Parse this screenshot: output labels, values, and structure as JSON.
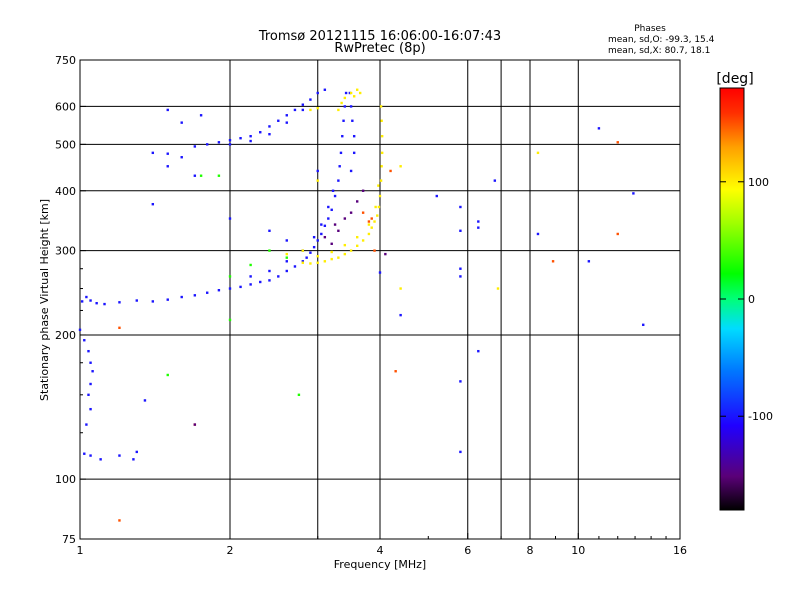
{
  "chart_data": {
    "type": "scatter",
    "title": "Tromsø 20121115 16:06:00-16:07:43",
    "subtitle": "RwPretec (8p)",
    "xlabel": "Frequency [MHz]",
    "ylabel": "Stationary phase Virtual Height [km]",
    "x_scale": "log2",
    "y_scale": "log",
    "xlim": [
      1,
      16
    ],
    "ylim": [
      75,
      750
    ],
    "x_ticks": [
      1,
      2,
      4,
      6,
      8,
      10,
      16
    ],
    "x_tick_labels": [
      "1",
      "2",
      "4",
      "6",
      "8",
      "10",
      "16"
    ],
    "x_grid": [
      1,
      2,
      3,
      4,
      6,
      7,
      8,
      10
    ],
    "y_ticks": [
      75,
      100,
      200,
      300,
      400,
      500,
      600,
      750
    ],
    "y_tick_labels": [
      "75",
      "100",
      "200",
      "300",
      "400",
      "500",
      "600",
      "750"
    ],
    "y_grid": [
      100,
      200,
      300,
      400,
      500,
      600
    ],
    "grid": true,
    "stats": {
      "header": "Phases",
      "line_o": "mean, sd,O: -99.3, 15.4",
      "line_x": "mean, sd,X:  80.7, 18.1"
    },
    "colorbar": {
      "label": "[deg]",
      "range": [
        -180,
        180
      ],
      "ticks": [
        100,
        0,
        -100
      ],
      "tick_labels": [
        "100",
        "0",
        "-100"
      ],
      "colors": [
        "#000000",
        "#5a0078",
        "#2000ff",
        "#0078ff",
        "#00dcff",
        "#00ff78",
        "#00ff00",
        "#a0ff00",
        "#ffff00",
        "#ffa000",
        "#ff3000",
        "#ff0000"
      ]
    },
    "series": [
      {
        "phase": -100,
        "points": [
          [
            1.0,
            205
          ],
          [
            1.01,
            235
          ],
          [
            1.03,
            240
          ],
          [
            1.05,
            236
          ],
          [
            1.08,
            233
          ],
          [
            1.02,
            195
          ],
          [
            1.04,
            185
          ],
          [
            1.05,
            175
          ],
          [
            1.06,
            168
          ],
          [
            1.05,
            158
          ],
          [
            1.04,
            150
          ],
          [
            1.05,
            140
          ],
          [
            1.03,
            130
          ],
          [
            1.02,
            113
          ],
          [
            1.05,
            112
          ],
          [
            1.1,
            110
          ],
          [
            1.2,
            112
          ],
          [
            1.3,
            114
          ],
          [
            1.12,
            232
          ],
          [
            1.2,
            234
          ],
          [
            1.3,
            236
          ],
          [
            1.4,
            235
          ],
          [
            1.5,
            237
          ],
          [
            1.6,
            240
          ],
          [
            1.7,
            242
          ],
          [
            1.8,
            245
          ],
          [
            1.9,
            248
          ],
          [
            2.0,
            250
          ],
          [
            2.1,
            252
          ],
          [
            2.2,
            255
          ],
          [
            2.3,
            258
          ],
          [
            2.4,
            260
          ],
          [
            2.5,
            265
          ],
          [
            2.6,
            272
          ],
          [
            2.7,
            278
          ],
          [
            2.8,
            285
          ],
          [
            2.85,
            290
          ],
          [
            2.9,
            297
          ],
          [
            2.95,
            305
          ],
          [
            3.0,
            315
          ],
          [
            3.05,
            325
          ],
          [
            3.1,
            338
          ],
          [
            3.15,
            350
          ],
          [
            3.2,
            365
          ],
          [
            3.25,
            390
          ],
          [
            3.3,
            420
          ],
          [
            3.32,
            450
          ],
          [
            3.34,
            480
          ],
          [
            3.36,
            520
          ],
          [
            3.38,
            560
          ],
          [
            3.4,
            600
          ],
          [
            3.42,
            640
          ],
          [
            2.2,
            265
          ],
          [
            2.4,
            272
          ],
          [
            2.6,
            285
          ],
          [
            2.8,
            300
          ],
          [
            2.95,
            320
          ],
          [
            3.05,
            340
          ],
          [
            3.15,
            370
          ],
          [
            3.22,
            400
          ],
          [
            3.5,
            440
          ],
          [
            3.55,
            480
          ],
          [
            3.55,
            520
          ],
          [
            3.52,
            560
          ],
          [
            3.5,
            600
          ],
          [
            3.48,
            640
          ],
          [
            1.7,
            495
          ],
          [
            1.8,
            500
          ],
          [
            1.9,
            505
          ],
          [
            2.0,
            510
          ],
          [
            2.1,
            515
          ],
          [
            2.2,
            520
          ],
          [
            2.3,
            530
          ],
          [
            2.4,
            545
          ],
          [
            2.5,
            560
          ],
          [
            2.6,
            575
          ],
          [
            2.7,
            590
          ],
          [
            2.8,
            605
          ],
          [
            2.9,
            620
          ],
          [
            3.0,
            640
          ],
          [
            3.1,
            650
          ],
          [
            2.0,
            500
          ],
          [
            2.2,
            508
          ],
          [
            2.4,
            525
          ],
          [
            2.6,
            555
          ],
          [
            2.8,
            590
          ],
          [
            1.4,
            480
          ],
          [
            1.5,
            478
          ],
          [
            1.6,
            470
          ],
          [
            1.7,
            430
          ],
          [
            1.5,
            590
          ],
          [
            1.75,
            575
          ],
          [
            1.6,
            555
          ],
          [
            2.0,
            350
          ],
          [
            2.4,
            330
          ],
          [
            2.6,
            315
          ],
          [
            3.0,
            440
          ],
          [
            4.0,
            270
          ],
          [
            5.2,
            390
          ],
          [
            5.8,
            370
          ],
          [
            5.8,
            330
          ],
          [
            5.8,
            275
          ],
          [
            5.8,
            265
          ],
          [
            6.3,
            345
          ],
          [
            6.3,
            335
          ],
          [
            6.3,
            185
          ],
          [
            6.8,
            420
          ],
          [
            4.4,
            220
          ],
          [
            5.8,
            160
          ],
          [
            5.8,
            114
          ],
          [
            8.3,
            325
          ],
          [
            10.5,
            285
          ],
          [
            11.0,
            540
          ],
          [
            12.9,
            395
          ],
          [
            13.5,
            210
          ],
          [
            1.4,
            375
          ],
          [
            1.5,
            450
          ],
          [
            1.35,
            146
          ],
          [
            1.28,
            110
          ]
        ]
      },
      {
        "phase": 100,
        "points": [
          [
            2.8,
            283
          ],
          [
            2.9,
            282
          ],
          [
            3.0,
            283
          ],
          [
            3.1,
            285
          ],
          [
            3.2,
            288
          ],
          [
            3.3,
            290
          ],
          [
            3.4,
            295
          ],
          [
            3.5,
            300
          ],
          [
            3.6,
            307
          ],
          [
            3.7,
            315
          ],
          [
            3.8,
            325
          ],
          [
            3.85,
            335
          ],
          [
            3.9,
            345
          ],
          [
            3.95,
            355
          ],
          [
            3.98,
            370
          ],
          [
            4.0,
            390
          ],
          [
            4.02,
            420
          ],
          [
            4.03,
            450
          ],
          [
            4.04,
            480
          ],
          [
            4.04,
            520
          ],
          [
            4.03,
            560
          ],
          [
            4.02,
            600
          ],
          [
            3.0,
            292
          ],
          [
            3.2,
            298
          ],
          [
            3.4,
            308
          ],
          [
            3.6,
            320
          ],
          [
            3.8,
            340
          ],
          [
            3.92,
            370
          ],
          [
            3.97,
            410
          ],
          [
            3.3,
            590
          ],
          [
            3.35,
            610
          ],
          [
            3.4,
            625
          ],
          [
            3.5,
            640
          ],
          [
            3.6,
            650
          ],
          [
            3.65,
            640
          ],
          [
            3.55,
            630
          ],
          [
            2.9,
            590
          ],
          [
            3.0,
            595
          ],
          [
            2.8,
            300
          ],
          [
            2.6,
            295
          ],
          [
            4.4,
            250
          ],
          [
            6.9,
            250
          ],
          [
            8.3,
            480
          ],
          [
            3.0,
            420
          ],
          [
            4.4,
            450
          ]
        ]
      },
      {
        "phase": 150,
        "points": [
          [
            3.8,
            345
          ],
          [
            3.85,
            350
          ],
          [
            3.7,
            360
          ],
          [
            4.2,
            440
          ],
          [
            1.2,
            82
          ],
          [
            1.2,
            207
          ],
          [
            8.9,
            285
          ],
          [
            4.3,
            168
          ],
          [
            12.0,
            505
          ],
          [
            12.0,
            325
          ],
          [
            1.7,
            130
          ],
          [
            3.9,
            300
          ]
        ]
      },
      {
        "phase": 30,
        "points": [
          [
            1.9,
            430
          ],
          [
            1.75,
            430
          ],
          [
            2.0,
            215
          ],
          [
            1.5,
            165
          ],
          [
            2.75,
            150
          ],
          [
            2.4,
            300
          ],
          [
            2.6,
            290
          ],
          [
            2.0,
            265
          ],
          [
            2.2,
            280
          ]
        ]
      },
      {
        "phase": -150,
        "points": [
          [
            3.2,
            310
          ],
          [
            3.3,
            330
          ],
          [
            3.4,
            350
          ],
          [
            3.5,
            360
          ],
          [
            3.6,
            380
          ],
          [
            3.1,
            320
          ],
          [
            3.25,
            340
          ],
          [
            3.7,
            400
          ],
          [
            4.1,
            295
          ],
          [
            1.7,
            130
          ]
        ]
      }
    ]
  }
}
